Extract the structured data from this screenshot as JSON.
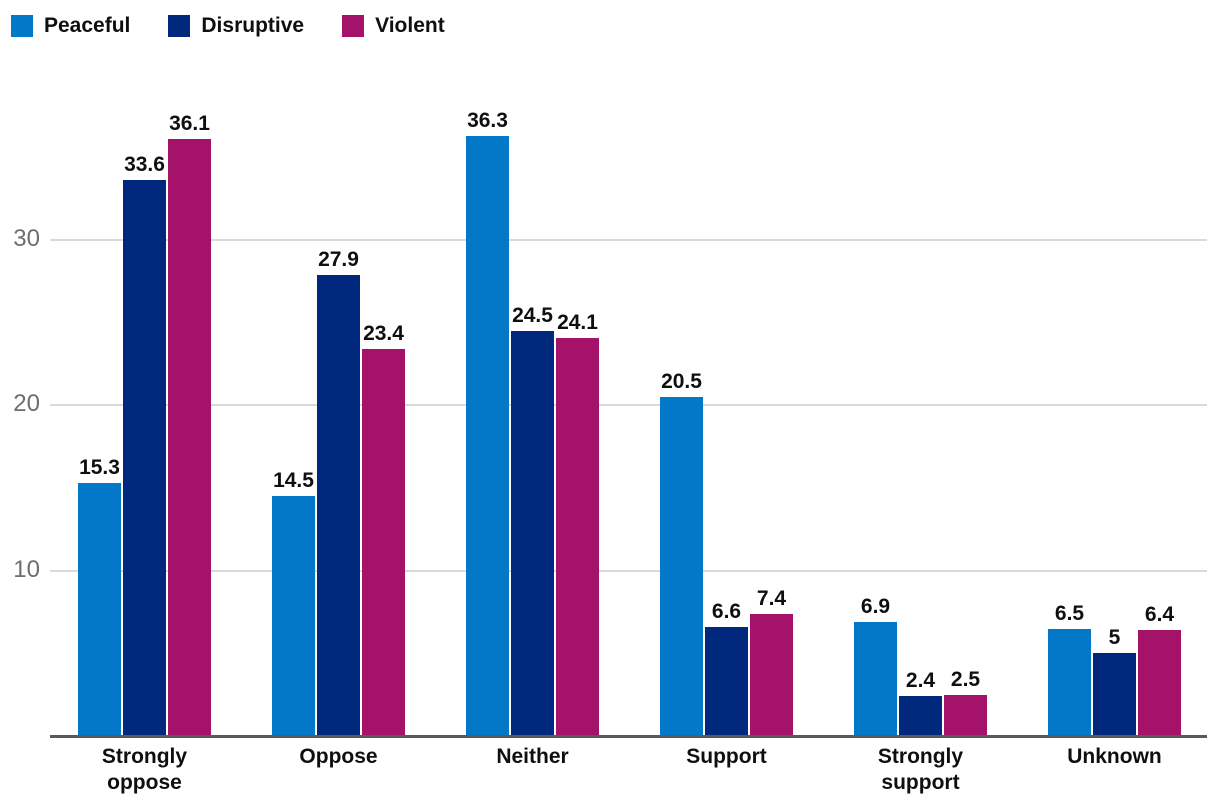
{
  "chart_data": {
    "type": "bar",
    "title": "",
    "xlabel": "",
    "ylabel": "",
    "categories": [
      "Strongly oppose",
      "Oppose",
      "Neither",
      "Support",
      "Strongly support",
      "Unknown"
    ],
    "series": [
      {
        "name": "Peaceful",
        "color": "#0478c8",
        "values": [
          15.3,
          14.5,
          36.3,
          20.5,
          6.9,
          6.5
        ]
      },
      {
        "name": "Disruptive",
        "color": "#00297e",
        "values": [
          33.6,
          27.9,
          24.5,
          6.6,
          2.4,
          5
        ]
      },
      {
        "name": "Violent",
        "color": "#a51269",
        "values": [
          36.1,
          23.4,
          24.1,
          7.4,
          2.5,
          6.4
        ]
      }
    ],
    "value_labels_shown": true,
    "y_ticks": [
      10,
      20,
      30
    ],
    "ylim": [
      0,
      41.5
    ],
    "grid": true,
    "legend_position": "top-left",
    "colors": {
      "grid": "#d9d9d9",
      "axis": "#58595b",
      "tick_label": "#6e6e6e",
      "text": "#0f0f0f"
    }
  }
}
